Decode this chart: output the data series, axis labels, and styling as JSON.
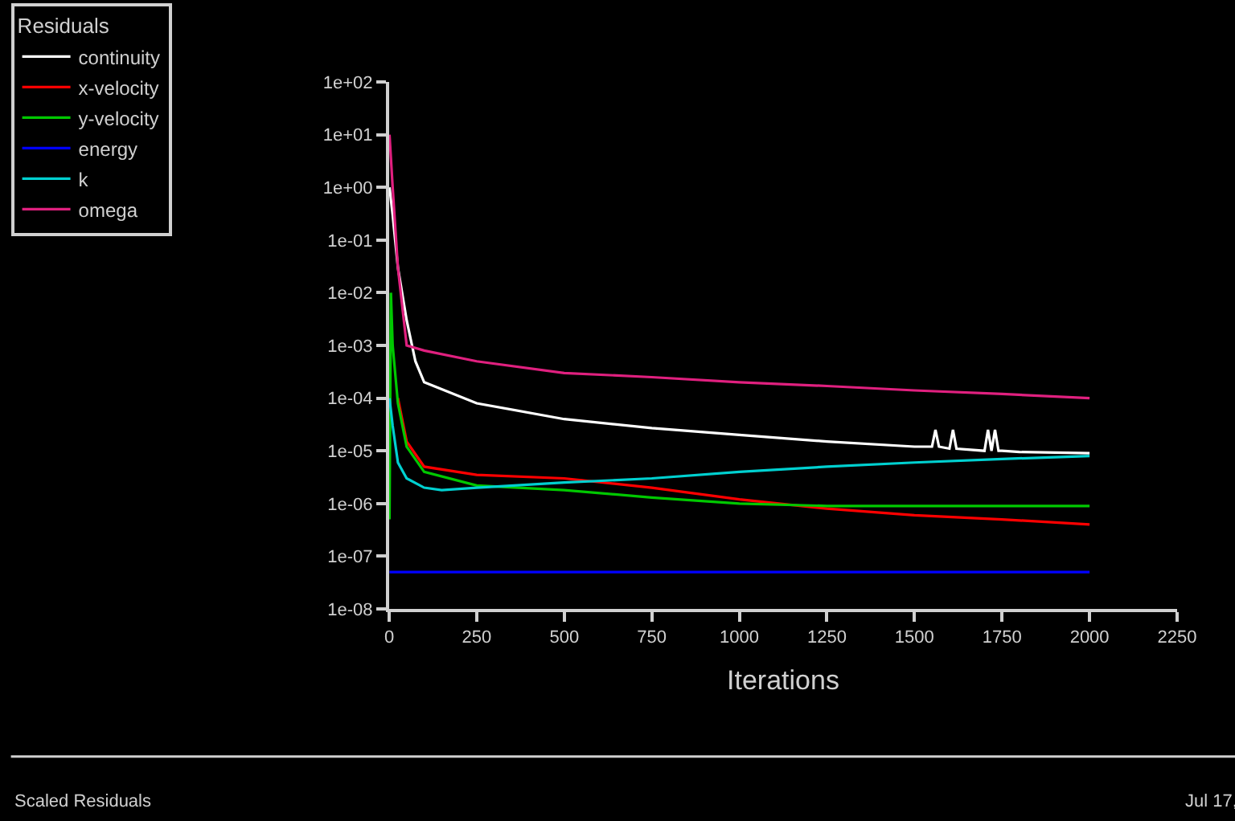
{
  "chart_data": {
    "type": "line",
    "xlabel": "Iterations",
    "legend_title": "Residuals",
    "legend": "top left",
    "log": "y",
    "grid": false,
    "marker": "none",
    "line_style": "solid",
    "xlim": [
      0,
      2250
    ],
    "xticks": [
      0,
      250,
      500,
      750,
      1000,
      1250,
      1500,
      1750,
      2000,
      2250
    ],
    "ylim": [
      1e-08,
      100
    ],
    "yticks": [
      {
        "value": 1e-08,
        "label": "1e-08"
      },
      {
        "value": 1e-07,
        "label": "1e-07"
      },
      {
        "value": 1e-06,
        "label": "1e-06"
      },
      {
        "value": 1e-05,
        "label": "1e-05"
      },
      {
        "value": 0.0001,
        "label": "1e-04"
      },
      {
        "value": 0.001,
        "label": "1e-03"
      },
      {
        "value": 0.01,
        "label": "1e-02"
      },
      {
        "value": 0.1,
        "label": "1e-01"
      },
      {
        "value": 1,
        "label": "1e+00"
      },
      {
        "value": 10,
        "label": "1e+01"
      },
      {
        "value": 100,
        "label": "1e+02"
      }
    ],
    "series": [
      {
        "name": "continuity",
        "color": "#ffffff",
        "x": [
          1,
          10,
          25,
          50,
          75,
          100,
          250,
          500,
          750,
          1000,
          1250,
          1500,
          1550,
          1560,
          1570,
          1600,
          1610,
          1620,
          1700,
          1710,
          1720,
          1730,
          1740,
          1750,
          1800,
          2000
        ],
        "values": [
          1,
          0.3,
          0.03,
          0.003,
          0.0005,
          0.0002,
          8e-05,
          4e-05,
          2.7e-05,
          2e-05,
          1.5e-05,
          1.2e-05,
          1.2e-05,
          2.5e-05,
          1.2e-05,
          1.1e-05,
          2.5e-05,
          1.1e-05,
          1e-05,
          2.5e-05,
          1e-05,
          2.5e-05,
          1e-05,
          1e-05,
          9.5e-06,
          9e-06
        ]
      },
      {
        "name": "x-velocity",
        "color": "#ff0000",
        "x": [
          25,
          50,
          100,
          250,
          500,
          750,
          1000,
          1250,
          1500,
          1750,
          2000
        ],
        "values": [
          0.0001,
          1.5e-05,
          5e-06,
          3.5e-06,
          3e-06,
          2e-06,
          1.2e-06,
          8e-07,
          6e-07,
          5e-07,
          4e-07
        ]
      },
      {
        "name": "y-velocity",
        "color": "#00c800",
        "x": [
          1,
          5,
          10,
          25,
          50,
          100,
          250,
          500,
          750,
          1000,
          1250,
          1500,
          1750,
          2000
        ],
        "values": [
          5e-07,
          0.01,
          0.001,
          8e-05,
          1.2e-05,
          4e-06,
          2.2e-06,
          1.8e-06,
          1.3e-06,
          1e-06,
          9e-07,
          9e-07,
          9e-07,
          9e-07
        ]
      },
      {
        "name": "energy",
        "color": "#0000ff",
        "x": [
          1,
          500,
          1000,
          1500,
          2000
        ],
        "values": [
          5e-08,
          5e-08,
          5e-08,
          5e-08,
          5e-08
        ]
      },
      {
        "name": "k",
        "color": "#00d0d0",
        "x": [
          1,
          10,
          25,
          50,
          100,
          150,
          250,
          500,
          750,
          1000,
          1250,
          1500,
          1750,
          2000
        ],
        "values": [
          0.0001,
          3e-05,
          6e-06,
          3e-06,
          2e-06,
          1.8e-06,
          2e-06,
          2.5e-06,
          3e-06,
          4e-06,
          5e-06,
          6e-06,
          7e-06,
          8e-06
        ]
      },
      {
        "name": "omega",
        "color": "#e0207f",
        "x": [
          1,
          10,
          25,
          50,
          100,
          250,
          500,
          750,
          1000,
          1250,
          1500,
          1750,
          2000
        ],
        "values": [
          10,
          1,
          0.03,
          0.001,
          0.0008,
          0.0005,
          0.0003,
          0.00025,
          0.0002,
          0.00017,
          0.00014,
          0.00012,
          0.0001
        ]
      }
    ],
    "annotations": [
      "Scaled Residuals",
      "Jul 17,"
    ]
  }
}
